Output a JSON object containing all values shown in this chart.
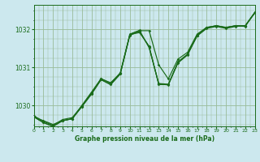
{
  "xlabel": "Graphe pression niveau de la mer (hPa)",
  "bg_color": "#cce8ee",
  "grid_color": "#99bb99",
  "line_color": "#1a6b1a",
  "xlim": [
    0,
    23
  ],
  "ylim": [
    1029.45,
    1032.65
  ],
  "xticks": [
    0,
    1,
    2,
    3,
    4,
    5,
    6,
    7,
    8,
    9,
    10,
    11,
    12,
    13,
    14,
    15,
    16,
    17,
    18,
    19,
    20,
    21,
    22,
    23
  ],
  "yticks": [
    1030,
    1031,
    1032
  ],
  "series": [
    [
      1029.7,
      1029.6,
      1029.5,
      1029.6,
      1029.65,
      1030.0,
      1030.35,
      1030.7,
      1030.6,
      1030.85,
      1031.87,
      1031.92,
      1031.56,
      1030.55,
      1030.55,
      1031.15,
      1031.35,
      1031.85,
      1032.05,
      1032.1,
      1032.05,
      1032.1,
      1032.1,
      1032.45
    ],
    [
      1029.7,
      1029.55,
      1029.45,
      1029.6,
      1029.65,
      1029.97,
      1030.3,
      1030.68,
      1030.55,
      1030.83,
      1031.85,
      1031.95,
      1031.55,
      1030.57,
      1030.54,
      1031.12,
      1031.33,
      1031.83,
      1032.03,
      1032.08,
      1032.03,
      1032.08,
      1032.1,
      1032.43
    ],
    [
      1029.73,
      1029.58,
      1029.48,
      1029.63,
      1029.68,
      1029.99,
      1030.33,
      1030.71,
      1030.58,
      1030.86,
      1031.88,
      1031.98,
      1031.52,
      1030.58,
      1030.56,
      1031.13,
      1031.35,
      1031.85,
      1032.05,
      1032.1,
      1032.05,
      1032.1,
      1032.1,
      1032.45
    ],
    [
      1029.7,
      1029.55,
      1029.45,
      1029.6,
      1029.65,
      1029.97,
      1030.3,
      1030.68,
      1030.55,
      1030.83,
      1031.87,
      1031.97,
      1031.97,
      1031.07,
      1030.7,
      1031.22,
      1031.4,
      1031.88,
      1032.06,
      1032.1,
      1032.06,
      1032.1,
      1032.08,
      1032.45
    ]
  ],
  "marker": "D",
  "marker_size": 1.8,
  "linewidth": 0.85,
  "xlabel_fontsize": 5.5,
  "xtick_fontsize": 4.5,
  "ytick_fontsize": 5.5
}
